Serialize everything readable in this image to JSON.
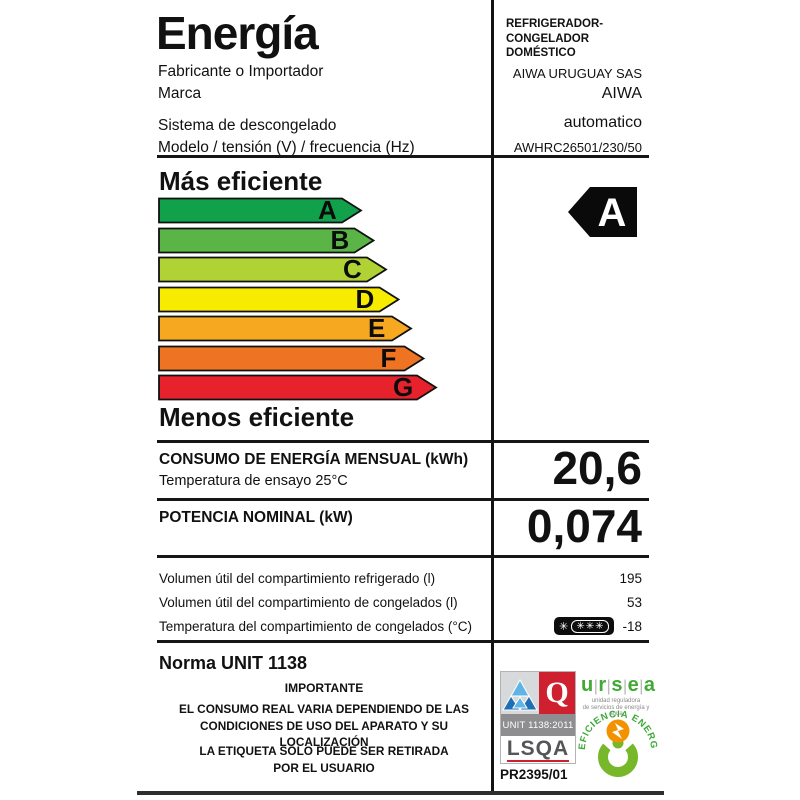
{
  "header": {
    "title": "Energía",
    "manufacturer_label": "Fabricante o Importador",
    "brand_label": "Marca",
    "category_lines": [
      "REFRIGERADOR-",
      "CONGELADOR",
      "DOMÉSTICO"
    ],
    "manufacturer": "AIWA URUGUAY SAS",
    "brand": "AIWA",
    "defrost_label": "Sistema de descongelado",
    "model_label": "Modelo / tensión (V) / frecuencia (Hz)",
    "defrost_value": "automatico",
    "model_value": "AWHRC26501/230/50"
  },
  "efficiency_scale": {
    "more_label": "Más eficiente",
    "less_label": "Menos eficiente",
    "grades": [
      {
        "letter": "A",
        "color": "#12a14b"
      },
      {
        "letter": "B",
        "color": "#5ab546"
      },
      {
        "letter": "C",
        "color": "#b0d235"
      },
      {
        "letter": "D",
        "color": "#f7eb00"
      },
      {
        "letter": "E",
        "color": "#f6a820"
      },
      {
        "letter": "F",
        "color": "#ee7423"
      },
      {
        "letter": "G",
        "color": "#e8222c"
      }
    ],
    "rating": "A",
    "rating_bg": "#0a0a0a"
  },
  "metrics": {
    "consumption_label": "CONSUMO DE ENERGÍA MENSUAL (kWh)",
    "consumption_sub": "Temperatura de ensayo 25°C",
    "consumption_value": "20,6",
    "power_label": "POTENCIA NOMINAL (kW)",
    "power_value": "0,074"
  },
  "details": {
    "rows": [
      {
        "label": "Volumen útil del compartimiento refrigerado (l)",
        "value": "195"
      },
      {
        "label": "Volumen útil del compartimiento de congelados (l)",
        "value": "53"
      },
      {
        "label": "Temperatura del compartimiento de congelados (°C)",
        "value": "-18"
      }
    ],
    "star_single": "✳",
    "stars_boxed": "✳✳✳"
  },
  "footer": {
    "norm": "Norma UNIT 1138",
    "important": "IMPORTANTE",
    "notice1_line1": "EL CONSUMO REAL VARIA DEPENDIENDO DE LAS",
    "notice1_line2": "CONDICIONES DE USO DEL APARATO Y SU LOCALIZACIÓN",
    "notice2_line1": "LA ETIQUETA SÓLO PUEDE SER RETIRADA",
    "notice2_line2": "POR EL USUARIO",
    "cert_code": "PR2395/01",
    "lsqa": {
      "q_letter": "Q",
      "unit_cert": "UNIT 1138:2011",
      "name": "LSQA"
    },
    "ursea": {
      "name_letters": "ursea",
      "tagline_line1": "unidad reguladora",
      "tagline_line2": "de servicios de energía y agua"
    },
    "efficiency_logo_text": "EFICIENCIA ENERGETICA"
  }
}
